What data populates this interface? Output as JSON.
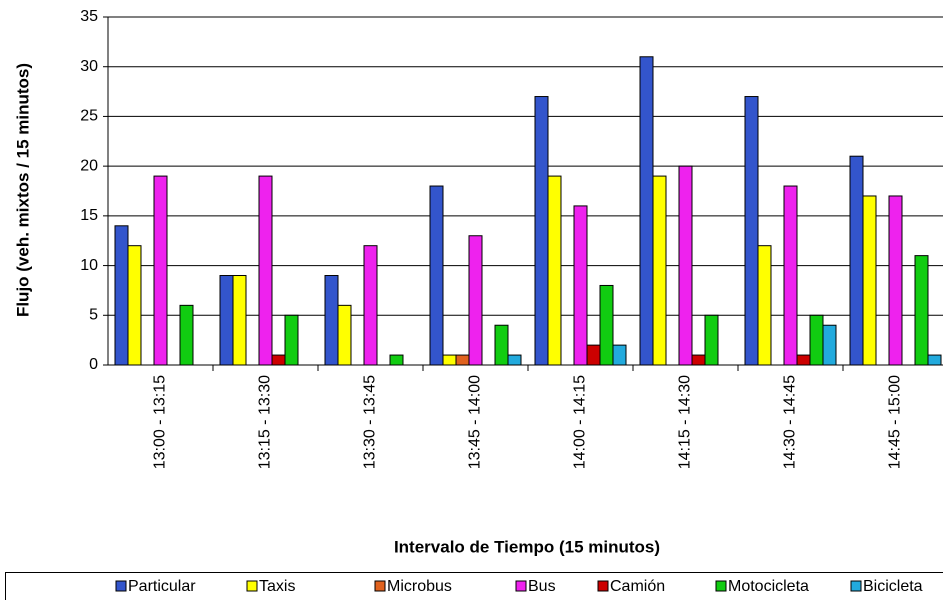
{
  "chart_data": {
    "type": "bar",
    "ylabel": "Flujo (veh. mixtos / 15 minutos)",
    "xlabel": "Intervalo de Tiempo (15 minutos)",
    "categories": [
      "13:00 - 13:15",
      "13:15 - 13:30",
      "13:30 - 13:45",
      "13:45 - 14:00",
      "14:00 - 14:15",
      "14:15 - 14:30",
      "14:30 - 14:45",
      "14:45 - 15:00"
    ],
    "series": [
      {
        "name": "Particular",
        "color": "#3355cc",
        "values": [
          14,
          9,
          9,
          18,
          27,
          31,
          27,
          21
        ]
      },
      {
        "name": "Taxis",
        "color": "#ffff00",
        "values": [
          12,
          9,
          6,
          1,
          19,
          19,
          12,
          17
        ]
      },
      {
        "name": "Microbus",
        "color": "#e0621e",
        "values": [
          0,
          0,
          0,
          1,
          0,
          0,
          0,
          0
        ]
      },
      {
        "name": "Bus",
        "color": "#ee22ee",
        "values": [
          19,
          19,
          12,
          13,
          16,
          20,
          18,
          17
        ]
      },
      {
        "name": "Camión",
        "color": "#cc0000",
        "values": [
          0,
          1,
          0,
          0,
          2,
          1,
          1,
          0
        ]
      },
      {
        "name": "Motocicleta",
        "color": "#11cc11",
        "values": [
          6,
          5,
          1,
          4,
          8,
          5,
          5,
          11
        ]
      },
      {
        "name": "Bicicleta",
        "color": "#22aadd",
        "values": [
          0,
          0,
          0,
          1,
          2,
          0,
          4,
          1
        ]
      }
    ],
    "ylim": [
      0,
      35
    ],
    "yticks": [
      0,
      5,
      10,
      15,
      20,
      25,
      30,
      35
    ],
    "grid": true,
    "legend": "bottom"
  }
}
